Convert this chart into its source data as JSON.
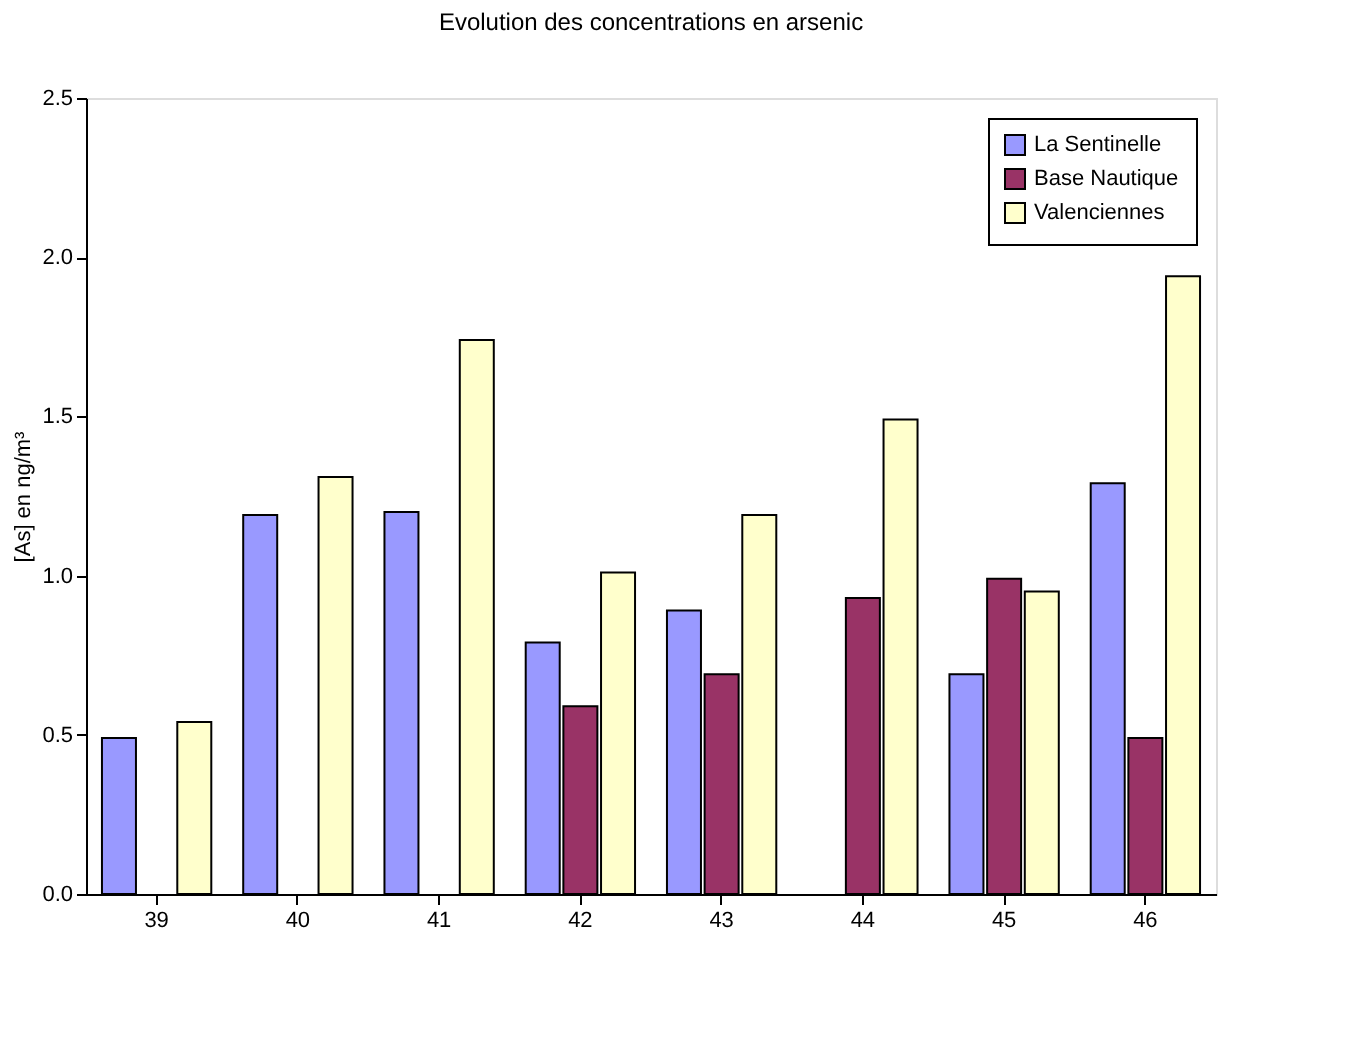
{
  "chart_data": {
    "type": "bar",
    "title": "Evolution des concentrations en arsenic",
    "ylabel": "[As] en ng/m³",
    "categories": [
      "39",
      "40",
      "41",
      "42",
      "43",
      "44",
      "45",
      "46"
    ],
    "series": [
      {
        "name": "La Sentinelle",
        "color": "#9999ff",
        "values": [
          0.49,
          1.19,
          1.2,
          0.79,
          0.89,
          null,
          0.69,
          1.29
        ]
      },
      {
        "name": "Base Nautique",
        "color": "#993366",
        "values": [
          null,
          null,
          null,
          0.59,
          0.69,
          0.93,
          0.99,
          0.49
        ]
      },
      {
        "name": "Valenciennes",
        "color": "#ffffcc",
        "values": [
          0.54,
          1.31,
          1.74,
          1.01,
          1.19,
          1.49,
          0.95,
          1.94
        ]
      }
    ],
    "ylim": [
      0,
      2.5
    ],
    "yticks": [
      {
        "value": 0,
        "label": "0.0"
      },
      {
        "value": 0.5,
        "label": "0.5"
      },
      {
        "value": 1,
        "label": "1.0"
      },
      {
        "value": 1.5,
        "label": "1.5"
      },
      {
        "value": 2,
        "label": "2.0"
      },
      {
        "value": 2.5,
        "label": "2.5"
      }
    ],
    "grid": false,
    "legend": "top right"
  }
}
